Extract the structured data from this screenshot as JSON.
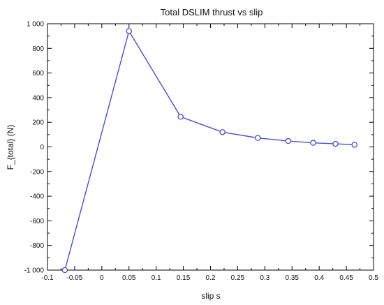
{
  "chart_data": {
    "type": "line",
    "title": "Total DSLIM thrust vs slip",
    "xlabel": "slip s",
    "ylabel": "F_{total} (N)",
    "xlim": [
      -0.1,
      0.5
    ],
    "ylim": [
      -1000,
      1000
    ],
    "x_ticks": [
      -0.1,
      -0.05,
      0,
      0.05,
      0.1,
      0.15,
      0.2,
      0.25,
      0.3,
      0.35,
      0.4,
      0.45,
      0.5
    ],
    "x_tick_labels": [
      "-0.1",
      "-0.05",
      "0",
      "0.05",
      "0.1",
      "0.15",
      "0.2",
      "0.25",
      "0.3",
      "0.35",
      "0.4",
      "0.45",
      "0.5"
    ],
    "y_ticks": [
      -1000,
      -800,
      -600,
      -400,
      -200,
      0,
      200,
      400,
      600,
      800,
      1000
    ],
    "y_tick_labels": [
      "-1 000",
      "-800",
      "-600",
      "-400",
      "-200",
      "0",
      "200",
      "400",
      "600",
      "800",
      "1 000"
    ],
    "grid": false,
    "legend": "none",
    "colors": {
      "line": "#4a4ae0",
      "marker_stroke": "#4a4ae0",
      "marker_fill": "#ffffff",
      "axis": "#000000",
      "text": "#111111"
    },
    "series": [
      {
        "marker": "circle",
        "x": [
          -0.068,
          0.05,
          0.145,
          0.222,
          0.287,
          0.343,
          0.389,
          0.43,
          0.465
        ],
        "y": [
          -1000,
          940,
          245,
          120,
          73,
          48,
          33,
          25,
          18
        ]
      }
    ]
  }
}
